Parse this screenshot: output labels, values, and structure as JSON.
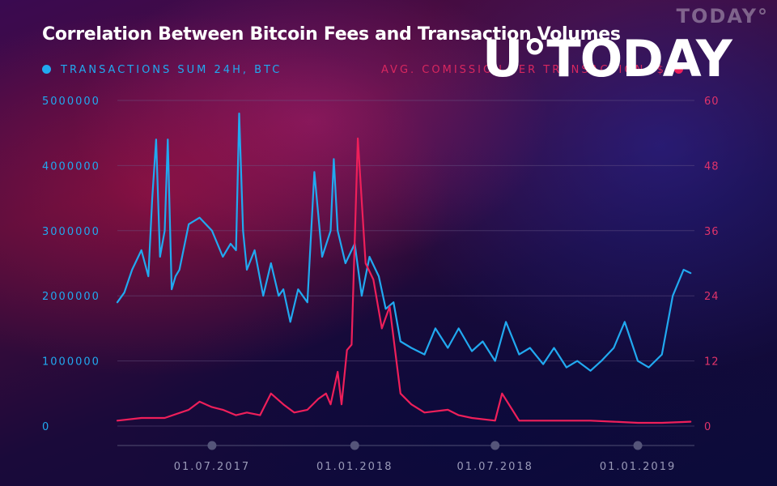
{
  "watermark_small": "TODAY°",
  "watermark_big": "U°TODAY",
  "colors": {
    "series_left": "#21a9f0",
    "series_right": "#ee1f5a",
    "grid": "#6a5a8a",
    "axis": "#7a7a9a"
  },
  "chart_data": {
    "type": "line",
    "title": "Correlation Between Bitcoin Fees and Transaction Volumes",
    "legend_placement": "top",
    "grid": true,
    "x_ticks": [
      "01.07.2017",
      "01.01.2018",
      "01.07.2018",
      "01.01.2019"
    ],
    "x_range": [
      "2017-03-01",
      "2019-03-15"
    ],
    "y_left": {
      "ylim": [
        0,
        5000000
      ],
      "ticks": [
        "0",
        "1000000",
        "2000000",
        "3000000",
        "4000000",
        "5000000"
      ]
    },
    "y_right": {
      "ylim": [
        0,
        60
      ],
      "ticks": [
        "0",
        "12",
        "24",
        "36",
        "48",
        "60"
      ]
    },
    "series": [
      {
        "name": "TRANSACTIONS SUM 24H, BTC",
        "axis": "left",
        "x": [
          "2017-03-01",
          "2017-03-10",
          "2017-03-20",
          "2017-04-01",
          "2017-04-10",
          "2017-04-15",
          "2017-04-20",
          "2017-04-25",
          "2017-05-01",
          "2017-05-05",
          "2017-05-10",
          "2017-05-15",
          "2017-05-20",
          "2017-06-01",
          "2017-06-15",
          "2017-07-01",
          "2017-07-15",
          "2017-07-25",
          "2017-08-01",
          "2017-08-05",
          "2017-08-10",
          "2017-08-15",
          "2017-08-25",
          "2017-09-05",
          "2017-09-15",
          "2017-09-25",
          "2017-10-01",
          "2017-10-10",
          "2017-10-20",
          "2017-11-01",
          "2017-11-10",
          "2017-11-20",
          "2017-12-01",
          "2017-12-05",
          "2017-12-10",
          "2017-12-20",
          "2018-01-01",
          "2018-01-10",
          "2018-01-20",
          "2018-02-01",
          "2018-02-10",
          "2018-02-20",
          "2018-03-01",
          "2018-03-15",
          "2018-04-01",
          "2018-04-15",
          "2018-05-01",
          "2018-05-15",
          "2018-06-01",
          "2018-06-15",
          "2018-07-01",
          "2018-07-15",
          "2018-08-01",
          "2018-08-15",
          "2018-09-01",
          "2018-09-15",
          "2018-10-01",
          "2018-10-15",
          "2018-11-01",
          "2018-11-15",
          "2018-12-01",
          "2018-12-15",
          "2019-01-01",
          "2019-01-15",
          "2019-02-01",
          "2019-02-15",
          "2019-03-01",
          "2019-03-10"
        ],
        "values": [
          1900000,
          2050000,
          2400000,
          2700000,
          2300000,
          3500000,
          4400000,
          2600000,
          3000000,
          4400000,
          2100000,
          2300000,
          2400000,
          3100000,
          3200000,
          3000000,
          2600000,
          2800000,
          2700000,
          4800000,
          3000000,
          2400000,
          2700000,
          2000000,
          2500000,
          2000000,
          2100000,
          1600000,
          2100000,
          1900000,
          3900000,
          2600000,
          3000000,
          4100000,
          3000000,
          2500000,
          2800000,
          2000000,
          2600000,
          2300000,
          1800000,
          1900000,
          1300000,
          1200000,
          1100000,
          1500000,
          1200000,
          1500000,
          1150000,
          1300000,
          1000000,
          1600000,
          1100000,
          1200000,
          950000,
          1200000,
          900000,
          1000000,
          850000,
          1000000,
          1200000,
          1600000,
          1000000,
          900000,
          1100000,
          2000000,
          2400000,
          2350000
        ]
      },
      {
        "name": "AVG. COMISSION PER TRANSACTION, $",
        "axis": "right",
        "x": [
          "2017-03-01",
          "2017-04-01",
          "2017-05-01",
          "2017-06-01",
          "2017-06-15",
          "2017-07-01",
          "2017-07-15",
          "2017-08-01",
          "2017-08-15",
          "2017-09-01",
          "2017-09-15",
          "2017-10-01",
          "2017-10-15",
          "2017-11-01",
          "2017-11-15",
          "2017-11-25",
          "2017-12-01",
          "2017-12-10",
          "2017-12-15",
          "2017-12-22",
          "2017-12-28",
          "2018-01-05",
          "2018-01-15",
          "2018-01-25",
          "2018-02-05",
          "2018-02-15",
          "2018-03-01",
          "2018-03-15",
          "2018-04-01",
          "2018-05-01",
          "2018-05-15",
          "2018-06-01",
          "2018-07-01",
          "2018-07-10",
          "2018-08-01",
          "2018-09-01",
          "2018-10-01",
          "2018-11-01",
          "2018-12-01",
          "2019-01-01",
          "2019-02-01",
          "2019-03-10"
        ],
        "values": [
          1.0,
          1.5,
          1.5,
          3.0,
          4.5,
          3.5,
          3.0,
          2.0,
          2.5,
          2.0,
          6.0,
          4.0,
          2.5,
          3.0,
          5.0,
          6.0,
          4.0,
          10.0,
          4.0,
          14.0,
          15.0,
          53.0,
          30.0,
          27.0,
          18.0,
          22.0,
          6.0,
          4.0,
          2.5,
          3.0,
          2.0,
          1.5,
          1.0,
          6.0,
          1.0,
          1.0,
          1.0,
          1.0,
          0.8,
          0.6,
          0.6,
          0.8
        ]
      }
    ]
  }
}
